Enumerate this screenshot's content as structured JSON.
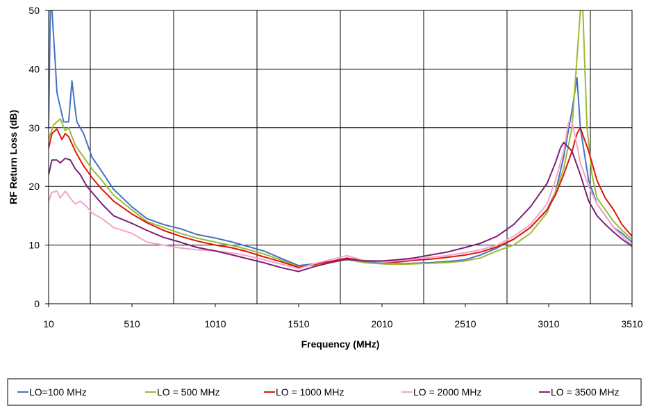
{
  "chart_data": {
    "type": "line",
    "title": "",
    "xlabel": "Frequency (MHz)",
    "ylabel": "RF Return Loss (dB)",
    "xlim": [
      10,
      3510
    ],
    "ylim": [
      0,
      50
    ],
    "xticks": [
      10,
      510,
      1010,
      1510,
      2010,
      2510,
      3010,
      3510
    ],
    "yticks": [
      0,
      10,
      20,
      30,
      40,
      50
    ],
    "x_gridlines": [
      260,
      760,
      1260,
      1760,
      2260,
      2760,
      3260
    ],
    "grid": true,
    "legend_position": "bottom",
    "series": [
      {
        "name": "LO=100 MHz",
        "color": "#4472C4",
        "x": [
          10,
          20,
          30,
          50,
          60,
          100,
          130,
          150,
          170,
          180,
          220,
          270,
          330,
          400,
          510,
          600,
          700,
          800,
          900,
          1010,
          1100,
          1200,
          1300,
          1400,
          1510,
          1600,
          1700,
          1800,
          1900,
          2010,
          2100,
          2200,
          2300,
          2400,
          2510,
          2600,
          2700,
          2800,
          2900,
          3000,
          3050,
          3100,
          3150,
          3180,
          3200,
          3250,
          3300,
          3350,
          3400,
          3450,
          3510
        ],
        "y": [
          30,
          50,
          50,
          41,
          36,
          31,
          31,
          38,
          33,
          31,
          29,
          25,
          22.5,
          19.5,
          16.5,
          14.5,
          13.5,
          12.8,
          11.8,
          11.2,
          10.6,
          9.8,
          9,
          7.8,
          6.5,
          6.8,
          7.2,
          7.5,
          7.1,
          6.9,
          6.8,
          6.9,
          7,
          7.2,
          7.5,
          8.3,
          9.5,
          11,
          13,
          16,
          19,
          25,
          33,
          38.5,
          30,
          21,
          17,
          15,
          13,
          12,
          10.5
        ]
      },
      {
        "name": "LO = 500 MHz",
        "color": "#9BBB2F",
        "x": [
          10,
          40,
          80,
          110,
          130,
          170,
          220,
          270,
          330,
          400,
          510,
          600,
          700,
          800,
          900,
          1010,
          1100,
          1200,
          1300,
          1400,
          1510,
          1600,
          1700,
          1800,
          1900,
          2010,
          2100,
          2200,
          2300,
          2400,
          2510,
          2600,
          2700,
          2800,
          2900,
          3000,
          3050,
          3100,
          3150,
          3180,
          3200,
          3215,
          3240,
          3270,
          3300,
          3350,
          3400,
          3450,
          3510
        ],
        "y": [
          28,
          30.5,
          31.5,
          29.5,
          30,
          27,
          25,
          23,
          21,
          18.5,
          16,
          14,
          13,
          12,
          11.2,
          10.5,
          10,
          9.3,
          8.5,
          7.5,
          6.3,
          6.6,
          7,
          7.6,
          7,
          6.8,
          6.7,
          6.8,
          6.9,
          7,
          7.3,
          7.8,
          9,
          10,
          12,
          15.5,
          19,
          23,
          30,
          42,
          50,
          50,
          30,
          22,
          18,
          16,
          14,
          12.5,
          11
        ]
      },
      {
        "name": "LO = 1000 MHz",
        "color": "#E3120B",
        "x": [
          10,
          30,
          60,
          90,
          110,
          130,
          170,
          220,
          270,
          330,
          400,
          510,
          600,
          700,
          800,
          900,
          1010,
          1100,
          1200,
          1300,
          1400,
          1510,
          1600,
          1700,
          1800,
          1900,
          2010,
          2100,
          2200,
          2300,
          2400,
          2510,
          2600,
          2700,
          2800,
          2900,
          3000,
          3050,
          3100,
          3150,
          3180,
          3200,
          3250,
          3300,
          3350,
          3400,
          3450,
          3510
        ],
        "y": [
          26.5,
          29,
          29.8,
          28,
          29,
          28.5,
          26,
          23.5,
          21.5,
          19.5,
          17.5,
          15.3,
          13.8,
          12.5,
          11.5,
          10.7,
          10,
          9.6,
          8.9,
          8,
          7.2,
          6.2,
          6.7,
          7.2,
          7.8,
          7.3,
          7.2,
          7.1,
          7.4,
          7.6,
          7.9,
          8.3,
          8.8,
          9.7,
          11,
          13,
          16,
          18.5,
          22,
          26,
          29,
          30,
          26,
          21,
          18,
          16,
          13.5,
          11.5
        ]
      },
      {
        "name": "LO = 2000 MHz",
        "color": "#F5A3C7",
        "x": [
          10,
          30,
          60,
          80,
          110,
          140,
          170,
          200,
          240,
          270,
          330,
          400,
          510,
          600,
          700,
          800,
          900,
          1010,
          1100,
          1200,
          1300,
          1400,
          1510,
          1600,
          1700,
          1800,
          1900,
          2010,
          2100,
          2200,
          2300,
          2400,
          2510,
          2600,
          2700,
          2800,
          2900,
          3000,
          3050,
          3100,
          3130,
          3150,
          3180,
          3200,
          3250,
          3300,
          3350,
          3400,
          3450,
          3510
        ],
        "y": [
          17.5,
          19,
          19.2,
          18,
          19.2,
          18,
          17,
          17.5,
          16.5,
          15.5,
          14.5,
          13,
          12,
          10.5,
          10,
          9.5,
          9.2,
          9,
          8.7,
          8.2,
          7.5,
          6.8,
          6,
          6.8,
          7.5,
          8.2,
          7.4,
          7.2,
          7.3,
          7.6,
          7.9,
          8.2,
          8.7,
          9.2,
          10,
          11.5,
          13.5,
          17,
          21,
          26,
          31,
          31,
          27,
          24,
          20,
          17,
          15,
          13,
          11.5,
          10
        ]
      },
      {
        "name": "LO = 3500 MHz",
        "color": "#7B1F78",
        "x": [
          10,
          30,
          60,
          80,
          110,
          140,
          170,
          200,
          240,
          270,
          330,
          400,
          510,
          600,
          700,
          800,
          900,
          1010,
          1100,
          1200,
          1300,
          1400,
          1510,
          1600,
          1700,
          1800,
          1900,
          2010,
          2100,
          2200,
          2300,
          2400,
          2510,
          2600,
          2700,
          2800,
          2900,
          3000,
          3050,
          3080,
          3100,
          3150,
          3200,
          3250,
          3300,
          3350,
          3400,
          3450,
          3510
        ],
        "y": [
          22,
          24.5,
          24.5,
          24,
          24.8,
          24.5,
          23,
          22,
          20,
          19,
          17,
          15,
          13.7,
          12.5,
          11.3,
          10.5,
          9.6,
          9,
          8.4,
          7.7,
          7,
          6.2,
          5.5,
          6.3,
          7,
          7.6,
          7.3,
          7.3,
          7.5,
          7.8,
          8.3,
          8.8,
          9.6,
          10.3,
          11.5,
          13.5,
          16.5,
          20.5,
          24,
          26.5,
          27.5,
          26,
          22,
          17.5,
          15,
          13.5,
          12.2,
          11,
          9.8
        ]
      }
    ]
  }
}
